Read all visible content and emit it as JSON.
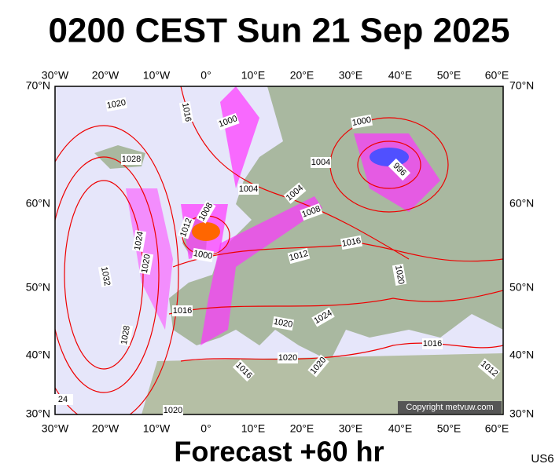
{
  "title": "0200 CEST Sun 21 Sep 2025",
  "lon_labels": [
    "30°W",
    "20°W",
    "10°W",
    "0°",
    "10°E",
    "20°E",
    "30°E",
    "40°E",
    "50°E",
    "60°E"
  ],
  "lat_labels": [
    "70°N",
    "60°N",
    "50°N",
    "40°N",
    "30°N"
  ],
  "isobar_labels": [
    "1020",
    "1016",
    "1000",
    "1028",
    "1000",
    "1004",
    "996",
    "1004",
    "1004",
    "1008",
    "1008",
    "1012",
    "1024",
    "1016",
    "1000",
    "1012",
    "1020",
    "1032",
    "1020",
    "1016",
    "1024",
    "1020",
    "1028",
    "1016",
    "1020",
    "1020",
    "1016",
    "1012",
    "24",
    "1020"
  ],
  "copyright": "Copyright metvuw.com",
  "footer": "Forecast +60 hr",
  "code": "US6"
}
